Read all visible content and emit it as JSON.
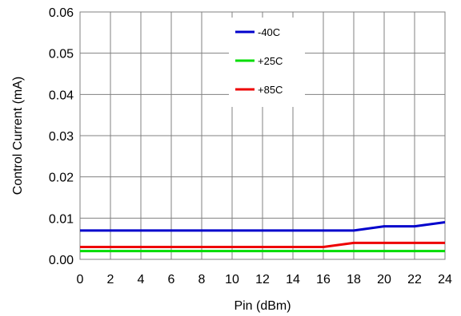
{
  "chart_data": {
    "type": "line",
    "title": "",
    "xlabel": "Pin (dBm)",
    "ylabel": "Control Current (mA)",
    "xlim": [
      0,
      24
    ],
    "ylim": [
      0,
      0.06
    ],
    "x_ticks": [
      0,
      2,
      4,
      6,
      8,
      10,
      12,
      14,
      16,
      18,
      20,
      22,
      24
    ],
    "x_tick_labels": [
      "0",
      "2",
      "4",
      "6",
      "8",
      "10",
      "12",
      "14",
      "16",
      "18",
      "20",
      "22",
      "24"
    ],
    "y_ticks": [
      0,
      0.01,
      0.02,
      0.03,
      0.04,
      0.05,
      0.06
    ],
    "y_tick_labels": [
      "0.00",
      "0.01",
      "0.02",
      "0.03",
      "0.04",
      "0.05",
      "0.06"
    ],
    "grid": true,
    "legend_position": "top-center",
    "x": [
      0,
      2,
      4,
      6,
      8,
      10,
      12,
      14,
      16,
      18,
      20,
      22,
      24
    ],
    "series": [
      {
        "name": "-40C",
        "color": "#0000cc",
        "values": [
          0.007,
          0.007,
          0.007,
          0.007,
          0.007,
          0.007,
          0.007,
          0.007,
          0.007,
          0.007,
          0.008,
          0.008,
          0.009
        ]
      },
      {
        "name": "+25C",
        "color": "#00dd00",
        "values": [
          0.002,
          0.002,
          0.002,
          0.002,
          0.002,
          0.002,
          0.002,
          0.002,
          0.002,
          0.002,
          0.002,
          0.002,
          0.002
        ]
      },
      {
        "name": "+85C",
        "color": "#ee0000",
        "values": [
          0.003,
          0.003,
          0.003,
          0.003,
          0.003,
          0.003,
          0.003,
          0.003,
          0.003,
          0.004,
          0.004,
          0.004,
          0.004
        ]
      }
    ]
  }
}
